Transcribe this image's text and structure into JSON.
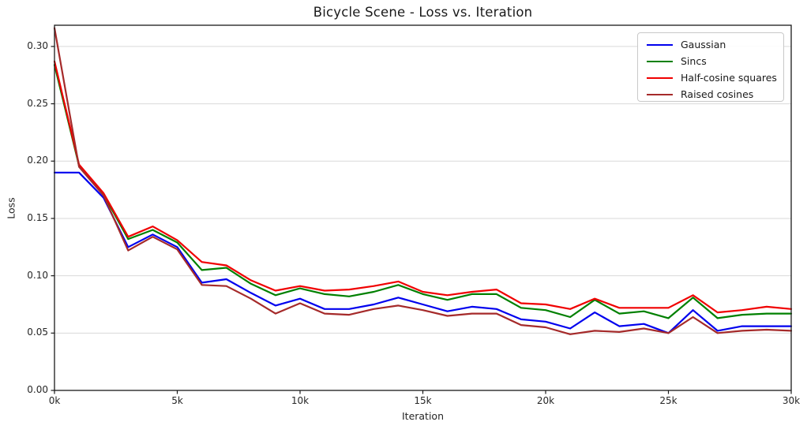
{
  "window": {
    "title": "Bicycle Scene - Loss vs. Iteration"
  },
  "colors": {
    "background": "#ffffff",
    "grid": "#d9d9d9",
    "spine": "#1a1a1a",
    "tick": "#1a1a1a",
    "text": "#262626",
    "legend_border": "#c9c9c9"
  },
  "chart_data": {
    "type": "line",
    "title": "Bicycle Scene - Loss vs. Iteration",
    "xlabel": "Iteration",
    "ylabel": "Loss",
    "xlim": [
      0,
      30000
    ],
    "ylim": [
      0,
      0.3185
    ],
    "grid": "horizontal-only",
    "legend_position": "upper right",
    "xticks": {
      "values": [
        0,
        5000,
        10000,
        15000,
        20000,
        25000,
        30000
      ],
      "labels": [
        "0k",
        "5k",
        "10k",
        "15k",
        "20k",
        "25k",
        "30k"
      ]
    },
    "yticks": {
      "values": [
        0.0,
        0.05,
        0.1,
        0.15,
        0.2,
        0.25,
        0.3
      ],
      "labels": [
        "0.00",
        "0.05",
        "0.10",
        "0.15",
        "0.20",
        "0.25",
        "0.30"
      ]
    },
    "x": [
      0,
      1000,
      2000,
      3000,
      4000,
      5000,
      6000,
      7000,
      8000,
      9000,
      10000,
      11000,
      12000,
      13000,
      14000,
      15000,
      16000,
      17000,
      18000,
      19000,
      20000,
      21000,
      22000,
      23000,
      24000,
      25000,
      26000,
      27000,
      28000,
      29000,
      30000
    ],
    "series": [
      {
        "name": "Gaussian",
        "color": "#0000ee",
        "values": [
          0.19,
          0.19,
          0.168,
          0.125,
          0.136,
          0.125,
          0.094,
          0.097,
          0.085,
          0.074,
          0.08,
          0.071,
          0.071,
          0.075,
          0.081,
          0.075,
          0.069,
          0.073,
          0.071,
          0.062,
          0.06,
          0.054,
          0.068,
          0.056,
          0.058,
          0.05,
          0.07,
          0.052,
          0.056,
          0.056,
          0.056
        ]
      },
      {
        "name": "Sincs",
        "color": "#008000",
        "values": [
          0.284,
          0.196,
          0.171,
          0.132,
          0.14,
          0.129,
          0.105,
          0.107,
          0.093,
          0.083,
          0.089,
          0.084,
          0.082,
          0.086,
          0.092,
          0.084,
          0.079,
          0.084,
          0.084,
          0.072,
          0.07,
          0.064,
          0.079,
          0.067,
          0.069,
          0.063,
          0.081,
          0.063,
          0.066,
          0.067,
          0.067
        ]
      },
      {
        "name": "Half-cosine squares",
        "color": "#f00000",
        "values": [
          0.287,
          0.197,
          0.172,
          0.134,
          0.143,
          0.131,
          0.112,
          0.109,
          0.096,
          0.087,
          0.091,
          0.087,
          0.088,
          0.091,
          0.095,
          0.086,
          0.083,
          0.086,
          0.088,
          0.076,
          0.075,
          0.071,
          0.08,
          0.072,
          0.072,
          0.072,
          0.083,
          0.068,
          0.07,
          0.073,
          0.071
        ]
      },
      {
        "name": "Raised cosines",
        "color": "#a52a2a",
        "values": [
          0.316,
          0.195,
          0.17,
          0.122,
          0.134,
          0.123,
          0.092,
          0.091,
          0.08,
          0.067,
          0.076,
          0.067,
          0.066,
          0.071,
          0.074,
          0.07,
          0.065,
          0.067,
          0.067,
          0.057,
          0.055,
          0.049,
          0.052,
          0.051,
          0.054,
          0.05,
          0.064,
          0.05,
          0.052,
          0.053,
          0.052
        ]
      }
    ]
  }
}
